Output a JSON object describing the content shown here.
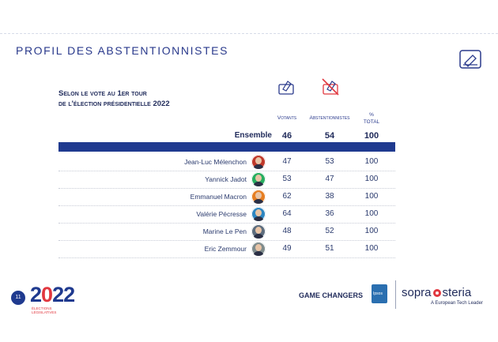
{
  "header": {
    "title": "PROFIL DES ABSTENTIONNISTES",
    "ballot_icon": "ballot-box-icon"
  },
  "subtitle": {
    "line1": "Selon le vote au 1er tour",
    "line2": "de l'élection présidentielle 2022"
  },
  "columns": {
    "votants": "Votants",
    "abstentionnistes": "Abstentionnistes",
    "total_line1": "%",
    "total_line2": "TOTAL"
  },
  "ensemble": {
    "label": "Ensemble",
    "votants": "46",
    "abstentionnistes": "54",
    "total": "100"
  },
  "rows": [
    {
      "name": "Jean-Luc Mélenchon",
      "votants": "47",
      "abstentionnistes": "53",
      "total": "100",
      "color": "#c0392b"
    },
    {
      "name": "Yannick Jadot",
      "votants": "53",
      "abstentionnistes": "47",
      "total": "100",
      "color": "#27ae60"
    },
    {
      "name": "Emmanuel Macron",
      "votants": "62",
      "abstentionnistes": "38",
      "total": "100",
      "color": "#e67e22"
    },
    {
      "name": "Valérie Pécresse",
      "votants": "64",
      "abstentionnistes": "36",
      "total": "100",
      "color": "#2e86c1"
    },
    {
      "name": "Marine Le Pen",
      "votants": "48",
      "abstentionnistes": "52",
      "total": "100",
      "color": "#5d6d7e"
    },
    {
      "name": "Eric Zemmour",
      "votants": "49",
      "abstentionnistes": "51",
      "total": "100",
      "color": "#7f8c8d"
    }
  ],
  "footer": {
    "page_number": "11",
    "logo_prefix": "2",
    "logo_red": "0",
    "logo_suffix": "22",
    "logo_sub_line1": "ÉLECTIONS",
    "logo_sub_line2": "LÉGISLATIVES",
    "game_changers": "GAME CHANGERS",
    "ipsos": "Ipsos",
    "sopra_left": "sopra",
    "sopra_right": "steria",
    "tagline": "A European Tech Leader"
  },
  "colors": {
    "navy": "#1f3a8f",
    "accent_red": "#e1373f"
  }
}
